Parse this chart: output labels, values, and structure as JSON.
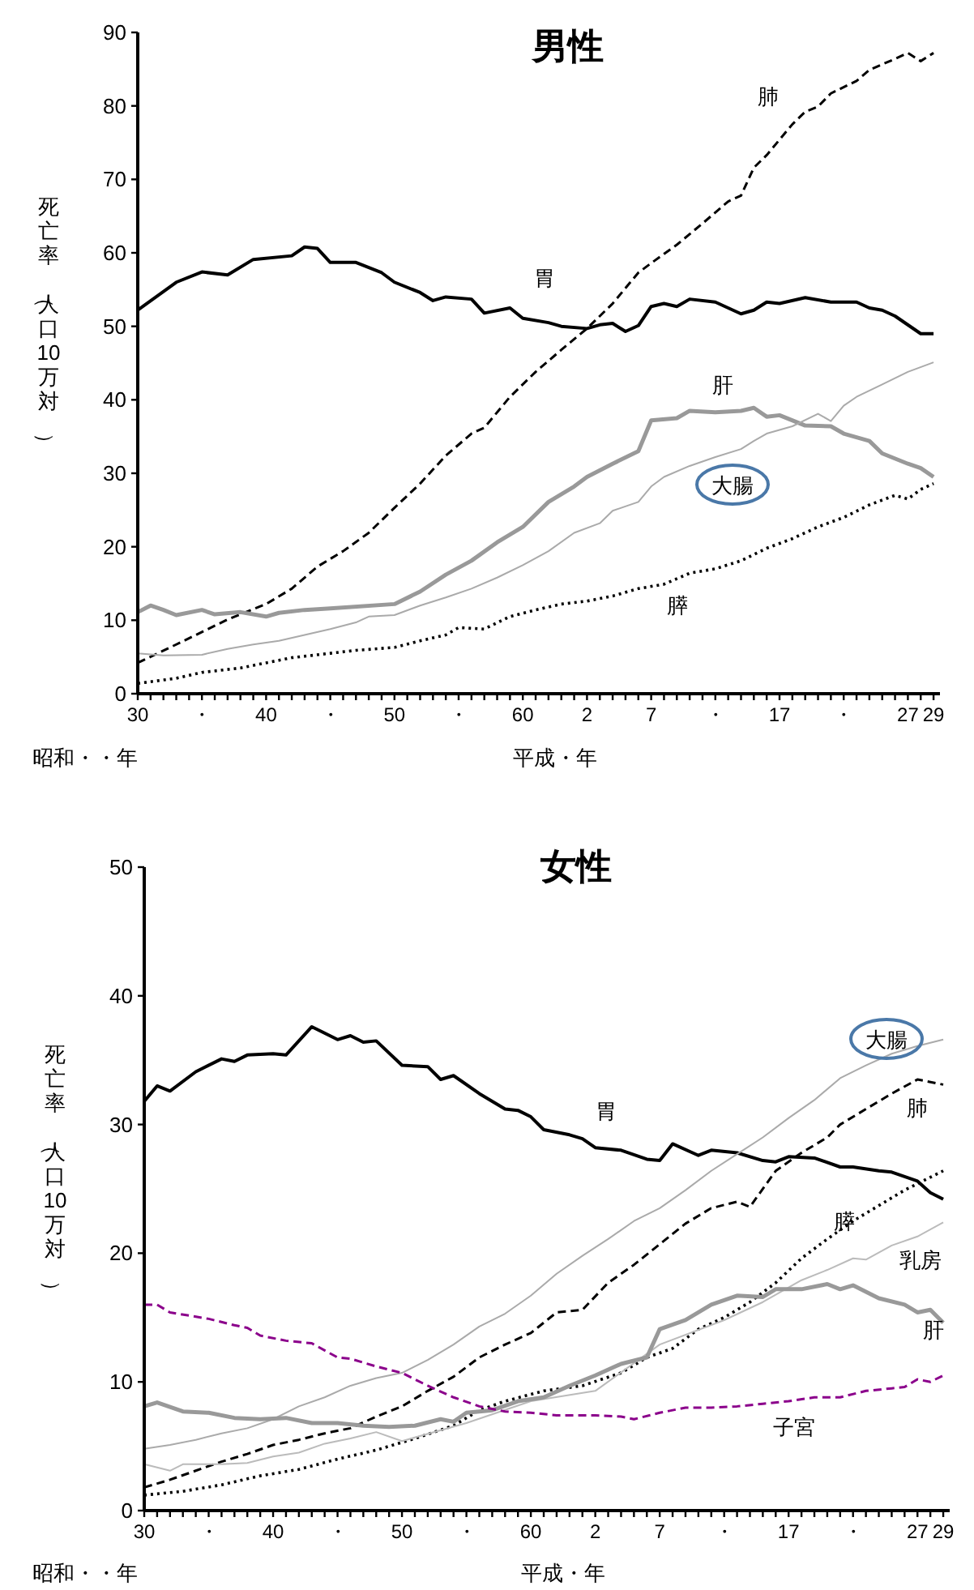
{
  "chart_data": [
    {
      "type": "line",
      "title": "男性",
      "ylabel": "死亡率（人口10万対）",
      "xlabel": "昭和・・年",
      "x2label": "平成・年",
      "grid": false,
      "xlim": [
        30,
        92.5
      ],
      "x2lim": [
        -33,
        29.5
      ],
      "ylim": [
        0,
        90
      ],
      "yticks": [
        0,
        10,
        20,
        30,
        40,
        50,
        60,
        70,
        80,
        90
      ],
      "xticks": [
        30,
        {
          "value": 31,
          "label": null
        },
        {
          "value": 32,
          "label": null
        },
        {
          "value": 33,
          "label": null
        },
        {
          "value": 34,
          "label": null
        },
        {
          "value": 35,
          "label": "・"
        },
        {
          "value": 36,
          "label": null
        },
        {
          "value": 37,
          "label": null
        },
        {
          "value": 38,
          "label": null
        },
        {
          "value": 39,
          "label": null
        },
        40,
        {
          "value": 41,
          "label": null
        },
        {
          "value": 42,
          "label": null
        },
        {
          "value": 43,
          "label": null
        },
        {
          "value": 44,
          "label": null
        },
        {
          "value": 45,
          "label": "・"
        },
        {
          "value": 46,
          "label": null
        },
        {
          "value": 47,
          "label": null
        },
        {
          "value": 48,
          "label": null
        },
        {
          "value": 49,
          "label": null
        },
        50,
        {
          "value": 51,
          "label": null
        },
        {
          "value": 52,
          "label": null
        },
        {
          "value": 53,
          "label": null
        },
        {
          "value": 54,
          "label": null
        },
        {
          "value": 55,
          "label": "・"
        },
        {
          "value": 56,
          "label": null
        },
        {
          "value": 57,
          "label": null
        },
        {
          "value": 58,
          "label": null
        },
        {
          "value": 59,
          "label": null
        },
        60,
        {
          "value": 61,
          "label": null
        },
        {
          "value": 62,
          "label": null
        },
        {
          "value": 63,
          "label": null
        },
        {
          "value": 64,
          "label": null
        }
      ],
      "x2ticks": [
        2,
        {
          "value": 3,
          "label": null
        },
        {
          "value": 4,
          "label": null
        },
        {
          "value": 5,
          "label": null
        },
        {
          "value": 6,
          "label": null
        },
        7,
        {
          "value": 8,
          "label": null
        },
        {
          "value": 9,
          "label": null
        },
        {
          "value": 10,
          "label": null
        },
        {
          "value": 11,
          "label": null
        },
        {
          "value": 12,
          "label": "・"
        },
        {
          "value": 13,
          "label": null
        },
        {
          "value": 14,
          "label": null
        },
        {
          "value": 15,
          "label": null
        },
        {
          "value": 16,
          "label": null
        },
        17,
        {
          "value": 18,
          "label": null
        },
        {
          "value": 19,
          "label": null
        },
        {
          "value": 20,
          "label": null
        },
        {
          "value": 21,
          "label": null
        },
        {
          "value": 22,
          "label": "・"
        },
        {
          "value": 23,
          "label": null
        },
        {
          "value": 24,
          "label": null
        },
        {
          "value": 25,
          "label": null
        },
        {
          "value": 26,
          "label": null
        },
        27,
        {
          "value": 28,
          "label": null
        },
        29
      ],
      "series": [
        {
          "name": "胃",
          "color": "#000000",
          "line_style": "solid",
          "x": [
            30,
            33,
            35,
            37,
            39,
            42,
            43,
            44,
            45,
            47,
            49,
            50,
            52,
            53,
            54,
            56,
            57,
            59,
            60,
            62,
            63,
            65,
            66,
            67,
            68,
            69,
            70,
            71,
            72,
            73,
            75,
            77,
            78,
            79,
            80,
            82,
            84,
            86,
            87,
            88,
            89,
            91,
            92
          ],
          "values": [
            52.2,
            56,
            57.4,
            57,
            59.1,
            59.6,
            60.8,
            60.6,
            58.7,
            58.7,
            57.3,
            56,
            54.6,
            53.5,
            54,
            53.7,
            51.8,
            52.5,
            51.1,
            50.5,
            50,
            49.7,
            50.2,
            50.4,
            49.3,
            50.1,
            52.7,
            53.1,
            52.7,
            53.7,
            53.3,
            51.7,
            52.2,
            53.3,
            53.1,
            53.9,
            53.3,
            53.3,
            52.5,
            52.2,
            51.4,
            49,
            49
          ]
        },
        {
          "name": "肺",
          "color": "#000000",
          "line_style": "dashed",
          "x": [
            30,
            33,
            35,
            37,
            40,
            42,
            44,
            46,
            48,
            50,
            52,
            54,
            56,
            57,
            59,
            61,
            63,
            65,
            67,
            69,
            70,
            72,
            74,
            76,
            77,
            78,
            79,
            81,
            82,
            83,
            84,
            86,
            87,
            89,
            90,
            91,
            92
          ],
          "values": [
            4.2,
            6.7,
            8.4,
            10.1,
            12.2,
            14.3,
            17.3,
            19.4,
            21.9,
            25.3,
            28.6,
            32.4,
            35.4,
            36.2,
            40.4,
            43.8,
            46.8,
            49.7,
            53.1,
            57.3,
            58.6,
            61.1,
            64,
            67,
            67.8,
            71.6,
            73.3,
            77.5,
            79.2,
            79.9,
            81.7,
            83.4,
            84.9,
            86.4,
            87.2,
            86.1,
            87.2
          ]
        },
        {
          "name": "肝",
          "color": "#999999",
          "line_style": "solid",
          "x": [
            30,
            31,
            32,
            33,
            35,
            36,
            38,
            40,
            41,
            43,
            45,
            50,
            52,
            54,
            56,
            58,
            60,
            62,
            64,
            65,
            67,
            69,
            70,
            72,
            73,
            75,
            77,
            78,
            79,
            80,
            82,
            84,
            85,
            87,
            88,
            90,
            91,
            92
          ],
          "values": [
            11.1,
            12,
            11.4,
            10.7,
            11.4,
            10.8,
            11.1,
            10.5,
            11,
            11.4,
            11.6,
            12.2,
            13.9,
            16.2,
            18.1,
            20.6,
            22.7,
            26.1,
            28.2,
            29.5,
            31.3,
            33,
            37.2,
            37.5,
            38.5,
            38.3,
            38.5,
            38.9,
            37.7,
            37.9,
            36.5,
            36.4,
            35.4,
            34.4,
            32.7,
            31.3,
            30.7,
            29.5
          ]
        },
        {
          "name": "大腸",
          "color": "#aaaaaa",
          "line_style": "solid",
          "x": [
            30,
            32,
            35,
            37,
            39,
            41,
            43,
            45,
            47,
            48,
            50,
            52,
            54,
            56,
            58,
            60,
            62,
            64,
            66,
            67,
            69,
            70,
            71,
            73,
            75,
            77,
            78,
            79,
            81,
            83,
            84,
            85,
            86,
            88,
            90,
            92
          ],
          "values": [
            5.5,
            5.2,
            5.3,
            6.1,
            6.7,
            7.2,
            8,
            8.8,
            9.7,
            10.5,
            10.7,
            12,
            13.1,
            14.3,
            15.8,
            17.5,
            19.4,
            21.9,
            23.2,
            24.9,
            26.1,
            28.2,
            29.5,
            31,
            32.2,
            33.3,
            34.4,
            35.4,
            36.4,
            38.1,
            37.1,
            39.2,
            40.4,
            42.1,
            43.8,
            45.1
          ]
        },
        {
          "name": "膵",
          "color": "#000000",
          "line_style": "dotted",
          "x": [
            30,
            33,
            35,
            38,
            40,
            42,
            45,
            47,
            50,
            52,
            54,
            55,
            57,
            59,
            61,
            63,
            65,
            67,
            69,
            71,
            73,
            75,
            77,
            79,
            81,
            83,
            85,
            87,
            89,
            90,
            91,
            92
          ],
          "values": [
            1.4,
            2.1,
            2.9,
            3.5,
            4.2,
            4.9,
            5.5,
            5.9,
            6.3,
            7.2,
            8,
            9,
            8.8,
            10.5,
            11.4,
            12.2,
            12.6,
            13.3,
            14.3,
            14.9,
            16.4,
            17,
            18.1,
            19.8,
            21.1,
            22.7,
            24,
            25.7,
            27,
            26.5,
            27.8,
            28.6
          ]
        }
      ]
    },
    {
      "type": "line",
      "title": "女性",
      "ylabel": "死亡率（人口10万対）",
      "xlabel": "昭和・・年",
      "x2label": "平成・年",
      "grid": false,
      "xlim": [
        30,
        92.5
      ],
      "x2lim": [
        -33,
        29.5
      ],
      "ylim": [
        0,
        50
      ],
      "yticks": [
        0,
        10,
        20,
        30,
        40,
        50
      ],
      "xticks": [
        30,
        {
          "value": 31,
          "label": null
        },
        {
          "value": 32,
          "label": null
        },
        {
          "value": 33,
          "label": null
        },
        {
          "value": 34,
          "label": null
        },
        {
          "value": 35,
          "label": "・"
        },
        {
          "value": 36,
          "label": null
        },
        {
          "value": 37,
          "label": null
        },
        {
          "value": 38,
          "label": null
        },
        {
          "value": 39,
          "label": null
        },
        40,
        {
          "value": 41,
          "label": null
        },
        {
          "value": 42,
          "label": null
        },
        {
          "value": 43,
          "label": null
        },
        {
          "value": 44,
          "label": null
        },
        {
          "value": 45,
          "label": "・"
        },
        {
          "value": 46,
          "label": null
        },
        {
          "value": 47,
          "label": null
        },
        {
          "value": 48,
          "label": null
        },
        {
          "value": 49,
          "label": null
        },
        50,
        {
          "value": 51,
          "label": null
        },
        {
          "value": 52,
          "label": null
        },
        {
          "value": 53,
          "label": null
        },
        {
          "value": 54,
          "label": null
        },
        {
          "value": 55,
          "label": "・"
        },
        {
          "value": 56,
          "label": null
        },
        {
          "value": 57,
          "label": null
        },
        {
          "value": 58,
          "label": null
        },
        {
          "value": 59,
          "label": null
        },
        60,
        {
          "value": 61,
          "label": null
        },
        {
          "value": 62,
          "label": null
        },
        {
          "value": 63,
          "label": null
        },
        {
          "value": 64,
          "label": null
        }
      ],
      "x2ticks": [
        2,
        {
          "value": 3,
          "label": null
        },
        {
          "value": 4,
          "label": null
        },
        {
          "value": 5,
          "label": null
        },
        {
          "value": 6,
          "label": null
        },
        7,
        {
          "value": 8,
          "label": null
        },
        {
          "value": 9,
          "label": null
        },
        {
          "value": 10,
          "label": null
        },
        {
          "value": 11,
          "label": null
        },
        {
          "value": 12,
          "label": "・"
        },
        {
          "value": 13,
          "label": null
        },
        {
          "value": 14,
          "label": null
        },
        {
          "value": 15,
          "label": null
        },
        {
          "value": 16,
          "label": null
        },
        17,
        {
          "value": 18,
          "label": null
        },
        {
          "value": 19,
          "label": null
        },
        {
          "value": 20,
          "label": null
        },
        {
          "value": 21,
          "label": null
        },
        {
          "value": 22,
          "label": "・"
        },
        {
          "value": 23,
          "label": null
        },
        {
          "value": 24,
          "label": null
        },
        {
          "value": 25,
          "label": null
        },
        {
          "value": 26,
          "label": null
        },
        27,
        {
          "value": 28,
          "label": null
        },
        29
      ],
      "series": [
        {
          "name": "胃",
          "color": "#000000",
          "line_style": "solid",
          "x": [
            30,
            31,
            32,
            34,
            36,
            37,
            38,
            40,
            41,
            43,
            45,
            46,
            47,
            48,
            50,
            52,
            53,
            54,
            56,
            58,
            59,
            60,
            61,
            63,
            64,
            65,
            67,
            69,
            70,
            71,
            73,
            74,
            76,
            78,
            79,
            80,
            82,
            84,
            85,
            87,
            88,
            90,
            91,
            92
          ],
          "values": [
            31.8,
            33,
            32.6,
            34.1,
            35.1,
            34.9,
            35.4,
            35.5,
            35.4,
            37.6,
            36.6,
            36.9,
            36.4,
            36.5,
            34.6,
            34.5,
            33.5,
            33.8,
            32.4,
            31.2,
            31.1,
            30.6,
            29.6,
            29.2,
            28.9,
            28.2,
            28,
            27.3,
            27.2,
            28.5,
            27.6,
            28,
            27.8,
            27.2,
            27.1,
            27.5,
            27.4,
            26.7,
            26.7,
            26.4,
            26.3,
            25.6,
            24.7,
            24.2
          ]
        },
        {
          "name": "大腸",
          "color": "#aaaaaa",
          "line_style": "solid",
          "x": [
            30,
            32,
            34,
            36,
            38,
            40,
            42,
            44,
            46,
            48,
            50,
            52,
            54,
            56,
            58,
            60,
            62,
            64,
            66,
            68,
            70,
            72,
            74,
            76,
            78,
            80,
            82,
            84,
            86,
            88,
            90,
            92
          ],
          "values": [
            4.8,
            5.1,
            5.5,
            6,
            6.4,
            7.1,
            8.1,
            8.8,
            9.7,
            10.3,
            10.7,
            11.7,
            12.9,
            14.3,
            15.3,
            16.7,
            18.4,
            19.8,
            21.1,
            22.5,
            23.5,
            24.9,
            26.4,
            27.7,
            29,
            30.5,
            31.9,
            33.6,
            34.6,
            35.5,
            36.1,
            36.6
          ]
        },
        {
          "name": "肺",
          "color": "#000000",
          "line_style": "dashed",
          "x": [
            30,
            32,
            34,
            36,
            38,
            40,
            42,
            44,
            46,
            48,
            50,
            52,
            54,
            56,
            58,
            60,
            62,
            64,
            66,
            68,
            70,
            72,
            74,
            76,
            77,
            79,
            81,
            83,
            84,
            86,
            88,
            90,
            92
          ],
          "values": [
            1.8,
            2.4,
            3.1,
            3.8,
            4.4,
            5.1,
            5.5,
            6,
            6.4,
            7.3,
            8.1,
            9.3,
            10.4,
            11.9,
            12.9,
            13.8,
            15.4,
            15.6,
            17.7,
            19.1,
            20.7,
            22.3,
            23.5,
            24,
            23.6,
            26.4,
            27.8,
            29,
            30,
            31.2,
            32.4,
            33.5,
            33.1
          ]
        },
        {
          "name": "膵",
          "color": "#000000",
          "line_style": "dotted",
          "x": [
            30,
            33,
            36,
            39,
            42,
            45,
            48,
            51,
            54,
            56,
            58,
            61,
            64,
            67,
            69,
            71,
            73,
            75,
            77,
            79,
            81,
            83,
            85,
            87,
            89,
            91,
            92
          ],
          "values": [
            1.2,
            1.5,
            2,
            2.7,
            3.2,
            4,
            4.7,
            5.6,
            6.6,
            7.8,
            8.5,
            9.3,
            9.7,
            10.7,
            11.9,
            12.6,
            14.1,
            15,
            16.2,
            17.7,
            19.6,
            21.1,
            22.5,
            23.7,
            24.9,
            25.9,
            26.4
          ]
        },
        {
          "name": "乳房",
          "color": "#bbbbbb",
          "line_style": "solid",
          "x": [
            30,
            32,
            33,
            36,
            38,
            40,
            42,
            44,
            46,
            48,
            50,
            55,
            60,
            65,
            70,
            75,
            78,
            81,
            83,
            85,
            86,
            88,
            90,
            92
          ],
          "values": [
            3.6,
            3.1,
            3.6,
            3.6,
            3.7,
            4.2,
            4.5,
            5.2,
            5.6,
            6.1,
            5.4,
            6.8,
            8.5,
            9.3,
            12.9,
            14.8,
            16.2,
            17.9,
            18.7,
            19.6,
            19.5,
            20.6,
            21.3,
            22.4
          ]
        },
        {
          "name": "肝",
          "color": "#999999",
          "line_style": "solid",
          "x": [
            30,
            31,
            33,
            35,
            37,
            39,
            41,
            43,
            45,
            47,
            49,
            51,
            53,
            54,
            55,
            57,
            59,
            61,
            63,
            65,
            67,
            69,
            70,
            72,
            74,
            76,
            78,
            79,
            81,
            83,
            84,
            85,
            87,
            89,
            90,
            91,
            92
          ],
          "values": [
            8.1,
            8.4,
            7.7,
            7.6,
            7.2,
            7.1,
            7.2,
            6.8,
            6.8,
            6.6,
            6.5,
            6.6,
            7.1,
            6.9,
            7.6,
            7.8,
            8.5,
            8.8,
            9.7,
            10.5,
            11.4,
            11.9,
            14.1,
            14.8,
            16,
            16.7,
            16.6,
            17.2,
            17.2,
            17.6,
            17.2,
            17.5,
            16.5,
            16,
            15.4,
            15.6,
            14.6
          ]
        },
        {
          "name": "子宮",
          "color": "#8b008b",
          "line_style": "dashed",
          "x": [
            30,
            31,
            32,
            35,
            37,
            38,
            39,
            41,
            43,
            45,
            46,
            48,
            50,
            52,
            54,
            56,
            58,
            60,
            62,
            65,
            67,
            68,
            70,
            72,
            74,
            76,
            78,
            80,
            82,
            84,
            86,
            88,
            89,
            90,
            91,
            92
          ],
          "values": [
            16,
            16,
            15.4,
            14.9,
            14.4,
            14.2,
            13.6,
            13.2,
            13,
            11.9,
            11.8,
            11.2,
            10.7,
            9.7,
            8.8,
            8.1,
            7.7,
            7.6,
            7.4,
            7.4,
            7.3,
            7.1,
            7.6,
            8,
            8,
            8.1,
            8.3,
            8.5,
            8.8,
            8.8,
            9.3,
            9.5,
            9.6,
            10.2,
            10,
            10.5
          ]
        }
      ]
    }
  ]
}
